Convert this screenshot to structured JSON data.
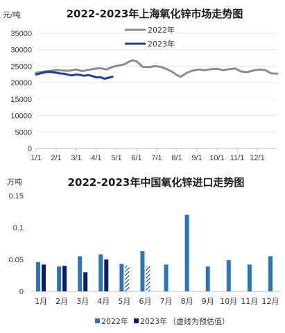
{
  "chart_data": [
    {
      "type": "line",
      "title": "2022-2023年上海氧化锌市场走势图",
      "unit": "元/吨",
      "ylim": [
        0,
        35000
      ],
      "yticks": [
        "0",
        "5000",
        "10000",
        "15000",
        "20000",
        "25000",
        "30000",
        "35000"
      ],
      "xticks": [
        "1/1",
        "2/1",
        "3/1",
        "4/1",
        "5/1",
        "6/1",
        "7/1",
        "8/1",
        "9/1",
        "10/1",
        "11/1",
        "12/1"
      ],
      "grid": true,
      "legend_position": "top-center",
      "series": [
        {
          "name": "2022年",
          "color": "#8c8c8c",
          "x": [
            0,
            0.3,
            0.6,
            1.0,
            1.3,
            1.6,
            2.0,
            2.3,
            2.6,
            2.9,
            3.2,
            3.5,
            3.8,
            4.1,
            4.4,
            4.6,
            4.8,
            5.0,
            5.3,
            5.6,
            5.9,
            6.2,
            6.5,
            6.8,
            7.0,
            7.2,
            7.5,
            7.8,
            8.1,
            8.4,
            8.7,
            9.0,
            9.3,
            9.6,
            9.9,
            10.2,
            10.5,
            10.8,
            11.1,
            11.4,
            11.7,
            12.0
          ],
          "values": [
            23000,
            23300,
            23500,
            23800,
            23700,
            23600,
            24000,
            23500,
            23900,
            24200,
            24400,
            24000,
            24800,
            25200,
            25600,
            26300,
            26800,
            26500,
            24800,
            24700,
            25000,
            24800,
            24100,
            23200,
            22300,
            21800,
            23000,
            23700,
            24000,
            23800,
            24100,
            24200,
            23800,
            24100,
            24300,
            23400,
            23200,
            23700,
            24000,
            23800,
            22800,
            22700
          ]
        },
        {
          "name": "2023年",
          "color": "#1f3f8f",
          "x": [
            0,
            0.2,
            0.4,
            0.6,
            0.8,
            1.0,
            1.2,
            1.4,
            1.6,
            1.8,
            2.0,
            2.2,
            2.4,
            2.6,
            2.8,
            3.0,
            3.2,
            3.4,
            3.6,
            3.8
          ],
          "values": [
            22500,
            22800,
            23100,
            23300,
            23200,
            23000,
            22800,
            22700,
            22400,
            22200,
            22500,
            22300,
            22100,
            22300,
            22000,
            21600,
            21700,
            21200,
            21500,
            21800
          ]
        }
      ]
    },
    {
      "type": "bar",
      "title": "2022-2023年中国氧化锌进口走势图",
      "unit": "万吨",
      "ylim": [
        0,
        0.15
      ],
      "yticks": [
        "0",
        "0.05",
        "0.1",
        "0.15"
      ],
      "categories": [
        "1月",
        "2月",
        "3月",
        "4月",
        "5月",
        "6月",
        "7月",
        "8月",
        "9月",
        "10月",
        "11月",
        "12月"
      ],
      "legend_position": "bottom",
      "series": [
        {
          "name": "2022年",
          "color": "#2e75b6",
          "values": [
            0.046,
            0.039,
            0.055,
            0.058,
            0.043,
            0.063,
            0.042,
            0.12,
            0.039,
            0.049,
            0.042,
            0.055
          ]
        },
        {
          "name": "2023年",
          "color": "#0b1f66",
          "values": [
            0.042,
            0.04,
            0.03,
            0.05,
            0.04,
            0.04,
            null,
            null,
            null,
            null,
            null,
            null
          ],
          "forecast": [
            false,
            false,
            false,
            false,
            true,
            true,
            false,
            false,
            false,
            false,
            false,
            false
          ]
        }
      ],
      "legend_note": "（虚线为预估值）"
    }
  ]
}
